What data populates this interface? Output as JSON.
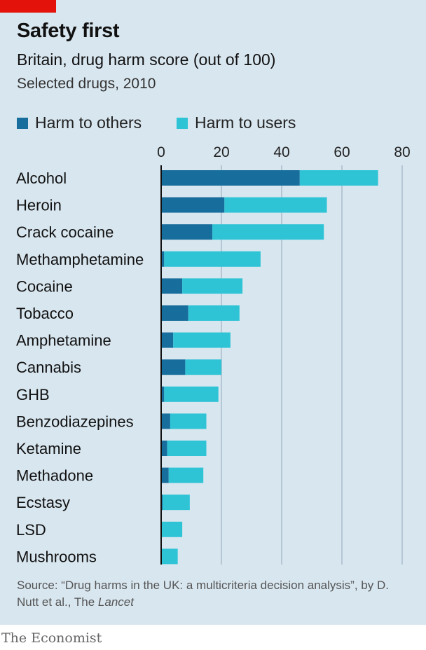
{
  "title": "Safety first",
  "subtitle": "Britain, drug harm score (out of 100)",
  "note": "Selected drugs, 2010",
  "legend": {
    "others": "Harm to others",
    "users": "Harm to users"
  },
  "source": {
    "main": "Source: “Drug harms in the UK: a multicriteria decision analysis”, by D. Nutt et al., The ",
    "italic": "Lancet"
  },
  "brand": "The Economist",
  "colors": {
    "others": "#176d9c",
    "users": "#2ec4d6",
    "grid": "#a9bccb",
    "axis": "#111111",
    "accent": "#e3120b"
  },
  "chart_data": {
    "type": "bar",
    "orientation": "horizontal",
    "stacked": true,
    "categories": [
      "Alcohol",
      "Heroin",
      "Crack cocaine",
      "Methamphetamine",
      "Cocaine",
      "Tobacco",
      "Amphetamine",
      "Cannabis",
      "GHB",
      "Benzodiazepines",
      "Ketamine",
      "Methadone",
      "Ecstasy",
      "LSD",
      "Mushrooms"
    ],
    "series": [
      {
        "name": "Harm to others",
        "values": [
          46,
          21,
          17,
          1,
          7,
          9,
          4,
          8,
          1,
          3,
          2,
          2.5,
          0.5,
          0,
          0
        ]
      },
      {
        "name": "Harm to users",
        "values": [
          26,
          34,
          37,
          32,
          20,
          17,
          19,
          12,
          18,
          12,
          13,
          11.5,
          9,
          7,
          5.5
        ]
      }
    ],
    "xlim": [
      0,
      80
    ],
    "xticks": [
      "0",
      "20",
      "40",
      "60",
      "80"
    ],
    "legend_position": "top",
    "grid": true
  }
}
